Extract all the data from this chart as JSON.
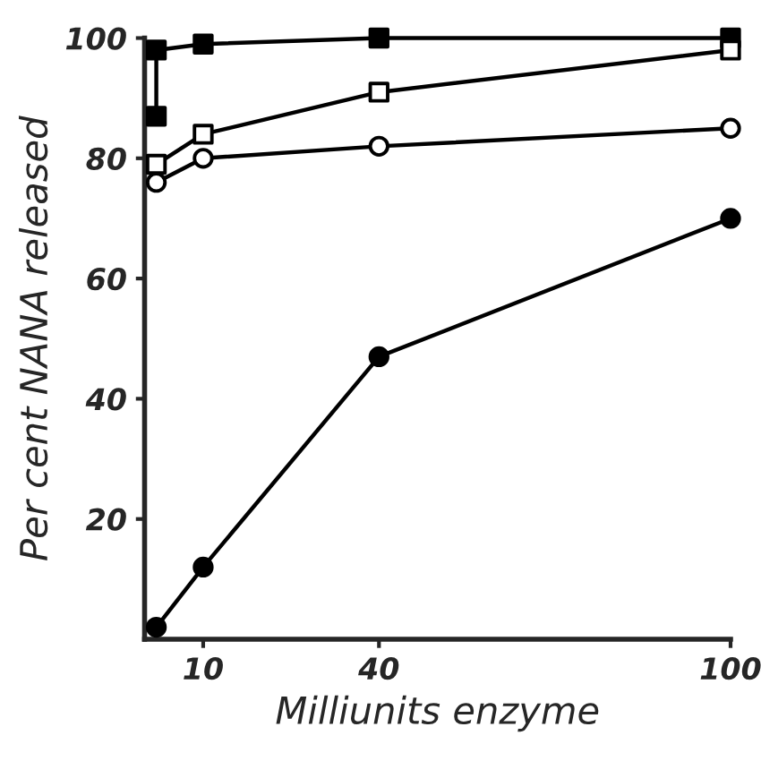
{
  "chart_data": {
    "type": "line",
    "xlabel": "Milliunits enzyme",
    "ylabel": "Per cent NANA released",
    "xlim": [
      0,
      100
    ],
    "ylim": [
      0,
      100
    ],
    "xticks": [
      10,
      40,
      100
    ],
    "yticks": [
      20,
      40,
      60,
      80,
      100
    ],
    "grid": false,
    "legend": false,
    "line_style": "solid",
    "series": [
      {
        "color": "#000000",
        "marker": "square",
        "x": [
          2,
          2,
          10,
          40,
          100
        ],
        "values": [
          87,
          98,
          99,
          100,
          100
        ]
      },
      {
        "color": "#000000",
        "colors": [
          "#ffffff",
          "#ffffff",
          "#ffffff",
          "#ffffff"
        ],
        "marker": "square",
        "x": [
          2,
          10,
          40,
          100
        ],
        "values": [
          79,
          84,
          91,
          98
        ]
      },
      {
        "color": "#000000",
        "colors": [
          "#ffffff",
          "#ffffff",
          "#ffffff",
          "#ffffff"
        ],
        "marker": "circle",
        "x": [
          2,
          10,
          40,
          100
        ],
        "values": [
          76,
          80,
          82,
          85
        ]
      },
      {
        "color": "#000000",
        "marker": "circle",
        "x": [
          2,
          10,
          40,
          100
        ],
        "values": [
          2,
          12,
          47,
          70
        ]
      }
    ]
  }
}
